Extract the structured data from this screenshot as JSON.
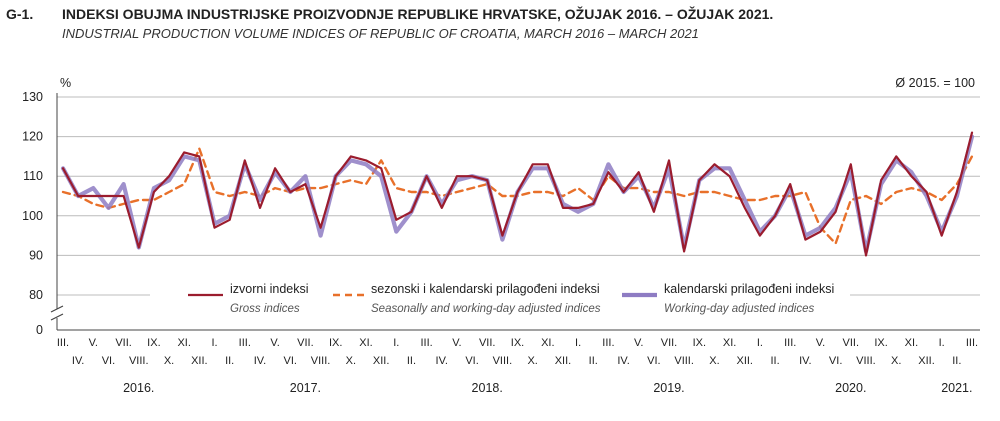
{
  "header": {
    "code": "G-1.",
    "title": "INDEKSI OBUJMA INDUSTRIJSKE PROIZVODNJE REPUBLIKE HRVATSKE, OŽUJAK 2016. – OŽUJAK 2021.",
    "subtitle": "INDUSTRIAL PRODUCTION VOLUME INDICES OF REPUBLIC OF CROATIA, MARCH 2016 – MARCH 2021"
  },
  "chart_data": {
    "type": "line",
    "ylabel": "%",
    "base_note": "Ø 2015. = 100",
    "ylim": [
      80,
      130
    ],
    "yticks": [
      "130",
      "120",
      "110",
      "100",
      "90",
      "80",
      "0"
    ],
    "axis_break": true,
    "grid": "horizontal",
    "legend_position": "bottom-inside",
    "months_row1": [
      "III.",
      "V.",
      "VII.",
      "IX.",
      "XI.",
      "I.",
      "III.",
      "V.",
      "VII.",
      "IX.",
      "XI.",
      "I.",
      "III.",
      "V.",
      "VII.",
      "IX.",
      "XI.",
      "I.",
      "III.",
      "V.",
      "VII.",
      "IX.",
      "XI.",
      "I.",
      "III.",
      "V.",
      "VII.",
      "IX.",
      "XI.",
      "I.",
      "III."
    ],
    "months_row2": [
      "IV.",
      "VI.",
      "VIII.",
      "X.",
      "XII.",
      "II.",
      "IV.",
      "VI.",
      "VIII.",
      "X.",
      "XII.",
      "II.",
      "IV.",
      "VI.",
      "VIII.",
      "X.",
      "XII.",
      "II.",
      "IV.",
      "VI.",
      "VIII.",
      "X.",
      "XII.",
      "II.",
      "IV.",
      "VI.",
      "VIII.",
      "X.",
      "XII.",
      "II."
    ],
    "years": [
      "2016.",
      "2017.",
      "2018.",
      "2019.",
      "2020.",
      "2021."
    ],
    "series": [
      {
        "name": "izvorni indeksi",
        "name_en": "Gross indices",
        "color": "#9b1c2e",
        "style": "solid",
        "values": [
          112,
          105,
          105,
          105,
          105,
          92,
          106,
          110,
          116,
          115,
          97,
          99,
          114,
          102,
          112,
          106,
          108,
          97,
          110,
          115,
          114,
          112,
          99,
          101,
          110,
          102,
          110,
          110,
          109,
          95,
          106,
          113,
          113,
          102,
          102,
          103,
          111,
          106,
          111,
          101,
          114,
          91,
          109,
          113,
          110,
          102,
          95,
          100,
          108,
          94,
          96,
          101,
          113,
          90,
          109,
          115,
          110,
          106,
          95,
          106,
          121
        ]
      },
      {
        "name": "sezonski i kalendarski prilagođeni indeksi",
        "name_en": "Seasonally and working-day adjusted indices",
        "color": "#e8702a",
        "style": "dashed",
        "values": [
          106,
          105,
          103,
          102,
          103,
          104,
          104,
          106,
          108,
          117,
          106,
          105,
          106,
          105,
          107,
          106,
          107,
          107,
          108,
          109,
          108,
          114,
          107,
          106,
          106,
          105,
          106,
          107,
          108,
          105,
          105,
          106,
          106,
          105,
          107,
          104,
          110,
          107,
          107,
          106,
          106,
          105,
          106,
          106,
          105,
          104,
          104,
          105,
          105,
          106,
          97,
          93,
          104,
          105,
          103,
          106,
          107,
          106,
          104,
          108,
          115
        ]
      },
      {
        "name": "kalendarski prilagođeni indeksi",
        "name_en": "Working-day adjusted indices",
        "color": "#8e7cc3",
        "style": "solid",
        "values": [
          112,
          105,
          107,
          102,
          108,
          92,
          107,
          109,
          115,
          114,
          98,
          100,
          113,
          104,
          111,
          106,
          110,
          95,
          110,
          114,
          113,
          110,
          96,
          101,
          110,
          103,
          109,
          110,
          109,
          94,
          106,
          112,
          112,
          103,
          101,
          103,
          113,
          106,
          110,
          102,
          112,
          92,
          109,
          112,
          112,
          104,
          96,
          100,
          107,
          95,
          97,
          102,
          111,
          91,
          108,
          114,
          111,
          105,
          96,
          105,
          120
        ]
      }
    ]
  }
}
